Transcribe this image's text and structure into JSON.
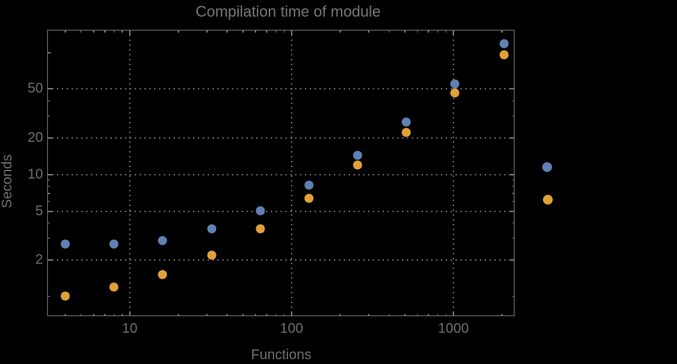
{
  "chart": {
    "title": "Compilation time of module",
    "xlabel": "Functions",
    "ylabel": "Seconds"
  },
  "chart_data": {
    "type": "scatter",
    "title": "Compilation time of module",
    "xlabel": "Functions",
    "ylabel": "Seconds",
    "x_scale": "log",
    "y_scale": "log",
    "xlim": [
      3.09,
      2385
    ],
    "ylim": [
      0.689,
      153
    ],
    "grid": "dotted",
    "x": [
      4,
      8,
      16,
      32,
      64,
      128,
      256,
      512,
      1024,
      2048
    ],
    "series": [
      {
        "name": "series-1",
        "color": "#5F81B4",
        "values": [
          2.7,
          2.68,
          2.85,
          3.56,
          5.06,
          8.2,
          14.4,
          26.7,
          54.8,
          118.5
        ]
      },
      {
        "name": "series-2",
        "color": "#E1A038",
        "values": [
          1.01,
          1.19,
          1.52,
          2.19,
          3.6,
          6.33,
          11.9,
          22.2,
          46.3,
          96
        ]
      }
    ],
    "x_major_ticks": [
      {
        "v": 10,
        "label": "10"
      },
      {
        "v": 100,
        "label": "100"
      },
      {
        "v": 1000,
        "label": "1000"
      }
    ],
    "x_minor_ticks": [
      4,
      5,
      6,
      7,
      8,
      9,
      20,
      30,
      40,
      50,
      60,
      70,
      80,
      90,
      200,
      300,
      400,
      500,
      600,
      700,
      800,
      900,
      2000
    ],
    "y_major_ticks": [
      {
        "v": 2,
        "label": "2"
      },
      {
        "v": 5,
        "label": "5"
      },
      {
        "v": 10,
        "label": "10"
      },
      {
        "v": 20,
        "label": "20"
      },
      {
        "v": 50,
        "label": "50"
      }
    ],
    "y_unlabeled_ticks": [
      100
    ],
    "y_minor_ticks": [
      1,
      3,
      4,
      6,
      7,
      8,
      9,
      30,
      40
    ],
    "x_gridlines": [
      10,
      100,
      1000
    ],
    "y_gridlines": [
      2,
      5,
      10,
      20,
      50
    ],
    "legend": {
      "position": "right-outside",
      "markers": [
        {
          "series": "series-1",
          "color": "#5F81B4"
        },
        {
          "series": "series-2",
          "color": "#E1A038"
        }
      ]
    },
    "colors": {
      "background": "#000000",
      "frame": "#787878",
      "grid": "#666666",
      "text": "#6f6f6f",
      "title": "#757575"
    }
  }
}
